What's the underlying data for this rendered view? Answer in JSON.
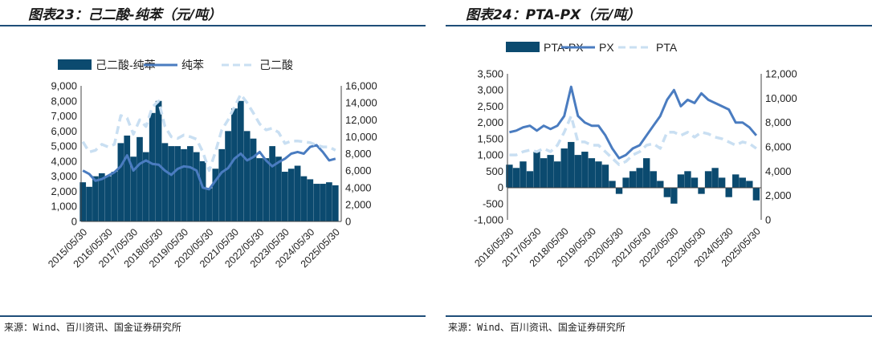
{
  "left": {
    "title": "图表23：己二酸-纯苯（元/吨）",
    "source": "来源：Wind、百川资讯、国金证券研究所",
    "chart_data": {
      "type": "bar+line",
      "legend_position": "top",
      "grid": false,
      "ylim_left": [
        0,
        9000
      ],
      "yticks_left": [
        0,
        1000,
        2000,
        3000,
        4000,
        5000,
        6000,
        7000,
        8000,
        9000
      ],
      "ylim_right": [
        0,
        16000
      ],
      "yticks_right": [
        0,
        2000,
        4000,
        6000,
        8000,
        10000,
        12000,
        14000,
        16000
      ],
      "x_tick_labels": [
        "2015/05/30",
        "2016/05/30",
        "2017/05/30",
        "2018/05/30",
        "2019/05/30",
        "2020/05/30",
        "2021/05/30",
        "2022/05/30",
        "2023/05/30",
        "2024/05/30",
        "2025/05/30"
      ],
      "x": [
        2015.42,
        2015.67,
        2015.92,
        2016.17,
        2016.42,
        2016.67,
        2016.92,
        2017.17,
        2017.42,
        2017.67,
        2017.92,
        2018.17,
        2018.42,
        2018.67,
        2018.92,
        2019.17,
        2019.42,
        2019.67,
        2019.92,
        2020.17,
        2020.42,
        2020.67,
        2020.92,
        2021.17,
        2021.42,
        2021.67,
        2021.92,
        2022.17,
        2022.42,
        2022.67,
        2022.92,
        2023.17,
        2023.42,
        2023.67,
        2023.92,
        2024.17,
        2024.42,
        2024.67,
        2024.92,
        2025.17,
        2025.42
      ],
      "series": [
        {
          "name": "己二酸-纯苯",
          "kind": "bar",
          "axis": "left",
          "color": "#0b4a6f",
          "values": [
            2600,
            2300,
            3000,
            3200,
            3000,
            3300,
            5200,
            5700,
            4300,
            5600,
            4600,
            7200,
            8000,
            5200,
            5000,
            5000,
            4800,
            5000,
            4600,
            4000,
            2200,
            3500,
            4800,
            6000,
            7500,
            8000,
            6000,
            5500,
            4200,
            4200,
            5000,
            4300,
            3300,
            3500,
            3700,
            3000,
            2800,
            2500,
            2500,
            2600,
            2400
          ]
        },
        {
          "name": "纯苯",
          "kind": "line",
          "axis": "right",
          "color": "#4a7cc0",
          "values": [
            6000,
            5600,
            4800,
            5000,
            5400,
            5800,
            6500,
            7800,
            6000,
            6800,
            7200,
            6800,
            6700,
            6000,
            5500,
            6200,
            6500,
            6400,
            6000,
            4000,
            3800,
            4800,
            5800,
            6300,
            7400,
            8000,
            7200,
            7600,
            8200,
            7200,
            6500,
            7000,
            7400,
            8000,
            8200,
            8000,
            8800,
            9000,
            8200,
            7200,
            7400
          ]
        },
        {
          "name": "己二酸",
          "kind": "line",
          "axis": "right",
          "dashed": true,
          "color": "#c9dff2",
          "values": [
            9400,
            8200,
            8400,
            9100,
            8800,
            9100,
            12500,
            12200,
            10300,
            12000,
            11200,
            13500,
            14200,
            11200,
            10000,
            9800,
            10200,
            10000,
            9700,
            8200,
            6000,
            8200,
            10800,
            12000,
            13500,
            15000,
            14000,
            12800,
            11500,
            10800,
            11000,
            10500,
            9200,
            9500,
            9500,
            9400,
            9300,
            9000,
            8800,
            8800,
            8400
          ]
        }
      ]
    }
  },
  "right": {
    "title": "图表24：PTA-PX（元/吨）",
    "source": "来源：Wind、百川资讯、国金证券研究所",
    "chart_data": {
      "type": "bar+line",
      "legend_position": "top",
      "grid": false,
      "ylim_left": [
        -1000,
        3500
      ],
      "yticks_left": [
        -1000,
        -500,
        0,
        500,
        1000,
        1500,
        2000,
        2500,
        3000,
        3500
      ],
      "ylim_right": [
        0,
        12000
      ],
      "yticks_right": [
        0,
        2000,
        4000,
        6000,
        8000,
        10000,
        12000
      ],
      "x_tick_labels": [
        "2016/05/30",
        "2017/05/30",
        "2018/05/30",
        "2019/05/30",
        "2020/05/30",
        "2021/05/30",
        "2022/05/30",
        "2023/05/30",
        "2024/05/30",
        "2025/05/30"
      ],
      "x": [
        2016.42,
        2016.67,
        2016.92,
        2017.17,
        2017.42,
        2017.67,
        2017.92,
        2018.17,
        2018.42,
        2018.67,
        2018.92,
        2019.17,
        2019.42,
        2019.67,
        2019.92,
        2020.17,
        2020.42,
        2020.67,
        2020.92,
        2021.17,
        2021.42,
        2021.67,
        2021.92,
        2022.17,
        2022.42,
        2022.67,
        2022.92,
        2023.17,
        2023.42,
        2023.67,
        2023.92,
        2024.17,
        2024.42,
        2024.67,
        2024.92,
        2025.17,
        2025.42
      ],
      "series": [
        {
          "name": "PTA-PX",
          "kind": "bar",
          "axis": "left",
          "color": "#0b4a6f",
          "values": [
            700,
            600,
            800,
            500,
            1100,
            900,
            1000,
            800,
            1200,
            1400,
            1000,
            1100,
            900,
            800,
            700,
            200,
            -200,
            300,
            500,
            600,
            900,
            500,
            200,
            -300,
            -500,
            400,
            500,
            300,
            -200,
            500,
            600,
            300,
            -300,
            400,
            300,
            200,
            -400
          ]
        },
        {
          "name": "PX",
          "kind": "line",
          "axis": "left",
          "color": "#4a7cc0",
          "values": [
            1700,
            1750,
            1850,
            1900,
            1750,
            1900,
            1800,
            1900,
            2200,
            3100,
            2200,
            2000,
            1900,
            1900,
            1600,
            1200,
            900,
            1000,
            1200,
            1300,
            1600,
            1900,
            2200,
            2700,
            3000,
            2500,
            2700,
            2600,
            2900,
            2700,
            2600,
            2500,
            2400,
            2000,
            2000,
            1850,
            1600
          ]
        },
        {
          "name": "PTA",
          "kind": "line",
          "axis": "left",
          "dashed": true,
          "color": "#c9dff2",
          "values": [
            1000,
            1000,
            1100,
            1150,
            1100,
            1200,
            1100,
            1300,
            1700,
            2200,
            1400,
            1400,
            1300,
            1300,
            1100,
            900,
            700,
            800,
            1000,
            1100,
            1300,
            1350,
            1200,
            1700,
            1700,
            1600,
            1700,
            1550,
            1700,
            1650,
            1550,
            1500,
            1400,
            1300,
            1400,
            1350,
            1200
          ]
        }
      ]
    }
  }
}
